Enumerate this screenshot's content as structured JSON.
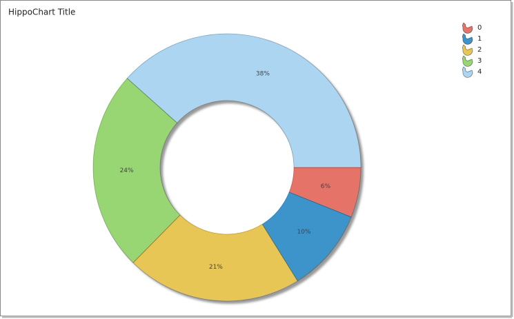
{
  "chart_data": {
    "type": "donut",
    "title": "HippoChart Title",
    "categories": [
      "0",
      "1",
      "2",
      "3",
      "4"
    ],
    "values": [
      6,
      10,
      21,
      24,
      38
    ],
    "value_labels": [
      "6%",
      "10%",
      "21%",
      "24%",
      "38%"
    ],
    "colors": [
      "#e57368",
      "#3d94cb",
      "#e8c655",
      "#97d672",
      "#acd5f1"
    ],
    "legend": "top-right"
  }
}
